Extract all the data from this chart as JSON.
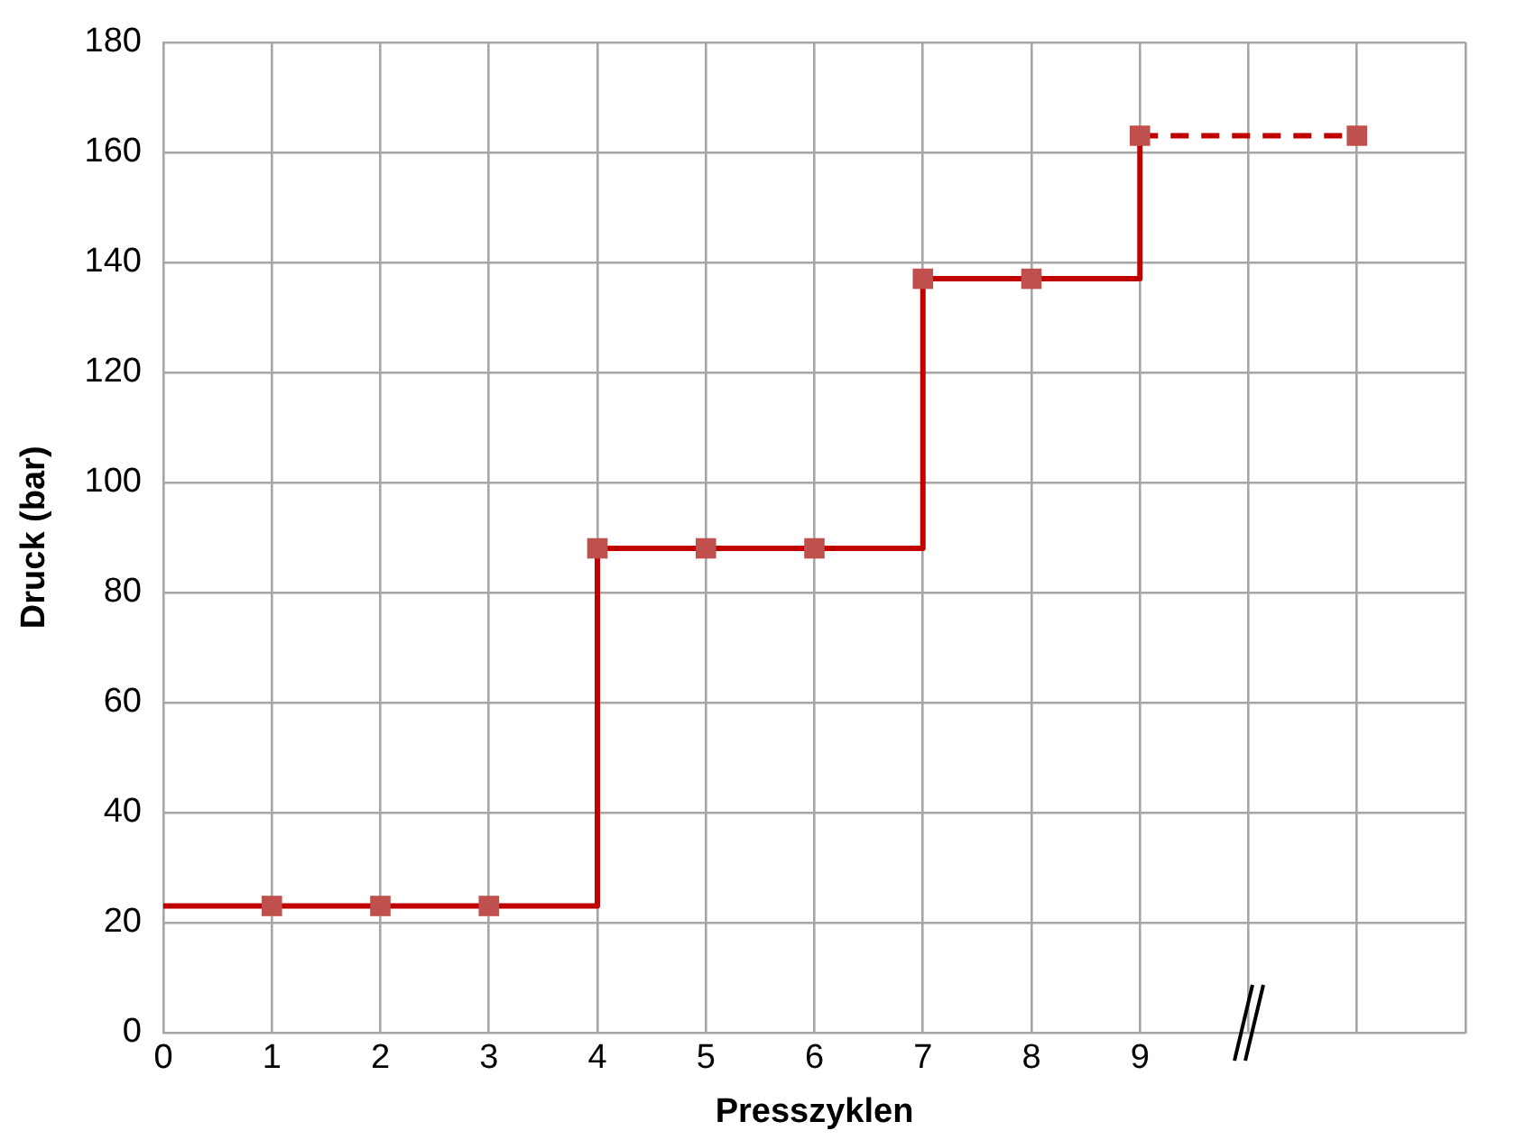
{
  "chart_data": {
    "type": "step",
    "xlabel": "Presszyklen",
    "ylabel": "Druck (bar)",
    "xlim": [
      0,
      12
    ],
    "xticks": [
      0,
      1,
      2,
      3,
      4,
      5,
      6,
      7,
      8,
      9,
      {
        "value": 10,
        "label": null
      },
      {
        "value": 11,
        "label": null
      },
      {
        "value": 12,
        "label": null
      }
    ],
    "ylim": [
      0,
      180
    ],
    "yticks": [
      0,
      20,
      40,
      60,
      80,
      100,
      120,
      140,
      160,
      180
    ],
    "grid": true,
    "legend": false,
    "series": [
      {
        "color": "#c00000",
        "x": [
          0,
          4,
          7,
          9
        ],
        "values": [
          23,
          88,
          137,
          163
        ],
        "marker": "none",
        "line_style": "solid"
      },
      {
        "type": "line",
        "color": "#c00000",
        "x": [
          9,
          11
        ],
        "values": [
          163,
          163
        ],
        "marker": "none",
        "line_style": "dashed"
      },
      {
        "type": "scatter",
        "color": "#c0504d",
        "x": [
          1,
          2,
          3,
          4,
          5,
          6,
          7,
          8,
          9,
          11
        ],
        "values": [
          23,
          23,
          23,
          88,
          88,
          88,
          137,
          137,
          163,
          163
        ],
        "marker": "square"
      }
    ]
  }
}
